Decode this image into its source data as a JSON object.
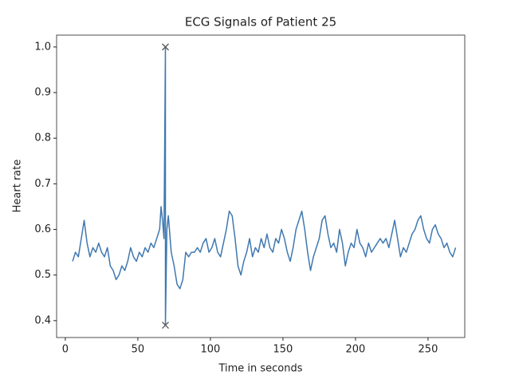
{
  "chart_data": {
    "type": "line",
    "title": "ECG Signals of Patient 25",
    "x_label": "Time in seconds",
    "y_label": "Heart rate",
    "xlim": [
      -6,
      275.3
    ],
    "ylim": [
      0.363,
      1.026
    ],
    "xticks": [
      0,
      50,
      100,
      150,
      200,
      250
    ],
    "yticks": [
      {
        "value": 0.4,
        "label": "0.4"
      },
      {
        "value": 0.5,
        "label": "0.5"
      },
      {
        "value": 0.6,
        "label": "0.6"
      },
      {
        "value": 0.7,
        "label": "0.7"
      },
      {
        "value": 0.8,
        "label": "0.8"
      },
      {
        "value": 0.9,
        "label": "0.9"
      },
      {
        "value": 1,
        "label": "1.0"
      }
    ],
    "grid": false,
    "series": [
      {
        "color": "#3f78b0",
        "marker": "none",
        "x": [
          5,
          7,
          9,
          11,
          13,
          15,
          17,
          19,
          21,
          23,
          25,
          27,
          29,
          31,
          33,
          35,
          37,
          39,
          41,
          43,
          45,
          47,
          49,
          51,
          53,
          55,
          57,
          59,
          61,
          63,
          65,
          66,
          67,
          68,
          69,
          69,
          70,
          71,
          73,
          75,
          77,
          79,
          81,
          83,
          85,
          87,
          89,
          91,
          93,
          95,
          97,
          99,
          101,
          103,
          105,
          107,
          109,
          111,
          113,
          115,
          117,
          119,
          121,
          123,
          125,
          127,
          129,
          131,
          133,
          135,
          137,
          139,
          141,
          143,
          145,
          147,
          149,
          151,
          153,
          155,
          157,
          159,
          161,
          163,
          165,
          167,
          169,
          171,
          173,
          175,
          177,
          179,
          181,
          183,
          185,
          187,
          189,
          191,
          193,
          195,
          197,
          199,
          201,
          203,
          205,
          207,
          209,
          211,
          213,
          215,
          217,
          219,
          221,
          223,
          225,
          227,
          229,
          231,
          233,
          235,
          237,
          239,
          241,
          243,
          245,
          247,
          249,
          251,
          253,
          255,
          257,
          259,
          261,
          263,
          265,
          267,
          269
        ],
        "values": [
          0.53,
          0.55,
          0.54,
          0.58,
          0.62,
          0.57,
          0.54,
          0.56,
          0.55,
          0.57,
          0.55,
          0.54,
          0.56,
          0.52,
          0.51,
          0.49,
          0.5,
          0.52,
          0.51,
          0.53,
          0.56,
          0.54,
          0.53,
          0.55,
          0.54,
          0.56,
          0.55,
          0.57,
          0.56,
          0.58,
          0.6,
          0.65,
          0.62,
          0.58,
          1.0,
          0.39,
          0.6,
          0.63,
          0.55,
          0.52,
          0.48,
          0.47,
          0.49,
          0.55,
          0.54,
          0.55,
          0.55,
          0.56,
          0.55,
          0.57,
          0.58,
          0.55,
          0.56,
          0.58,
          0.55,
          0.54,
          0.57,
          0.6,
          0.64,
          0.63,
          0.58,
          0.52,
          0.5,
          0.53,
          0.55,
          0.58,
          0.54,
          0.56,
          0.55,
          0.58,
          0.56,
          0.59,
          0.56,
          0.55,
          0.58,
          0.57,
          0.6,
          0.58,
          0.55,
          0.53,
          0.56,
          0.6,
          0.62,
          0.64,
          0.6,
          0.55,
          0.51,
          0.54,
          0.56,
          0.58,
          0.62,
          0.63,
          0.59,
          0.56,
          0.57,
          0.55,
          0.6,
          0.57,
          0.52,
          0.55,
          0.57,
          0.56,
          0.6,
          0.57,
          0.56,
          0.54,
          0.57,
          0.55,
          0.56,
          0.57,
          0.58,
          0.57,
          0.58,
          0.56,
          0.59,
          0.62,
          0.58,
          0.54,
          0.56,
          0.55,
          0.57,
          0.59,
          0.6,
          0.62,
          0.63,
          0.6,
          0.58,
          0.57,
          0.6,
          0.61,
          0.59,
          0.58,
          0.56,
          0.57,
          0.55,
          0.54,
          0.56
        ]
      },
      {
        "color": "#555555",
        "marker": "x",
        "x": [
          69,
          69
        ],
        "values": [
          1.0,
          0.39
        ]
      }
    ]
  }
}
